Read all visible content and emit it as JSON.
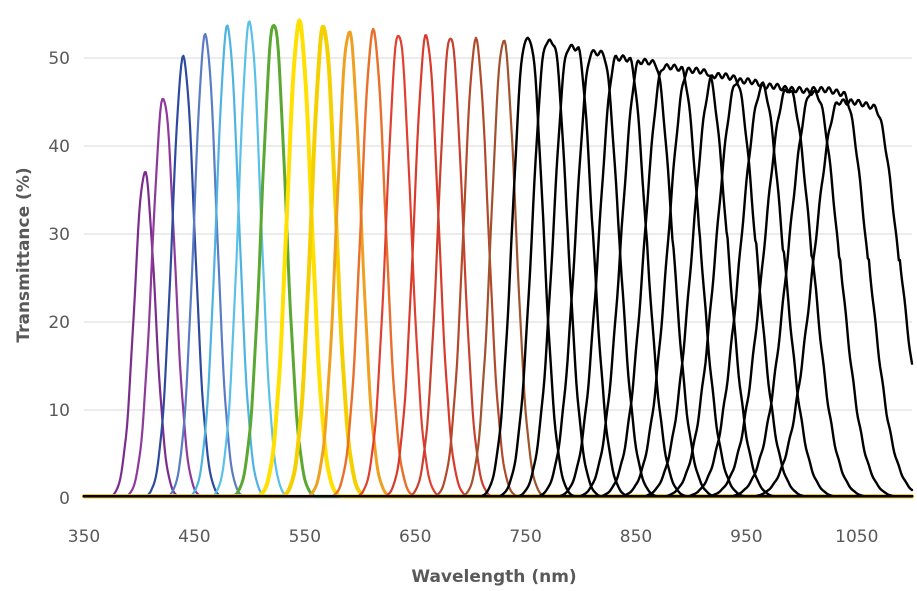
{
  "chart_data": {
    "type": "line",
    "title": "",
    "xlabel": "Wavelength (nm)",
    "ylabel": "Transmittance (%)",
    "xlim": [
      350,
      1100
    ],
    "ylim": [
      0,
      55
    ],
    "xticks": [
      350,
      450,
      550,
      650,
      750,
      850,
      950,
      1050
    ],
    "yticks": [
      0,
      10,
      20,
      30,
      40,
      50
    ],
    "grid": "horizontal",
    "legend": "none",
    "series": [
      {
        "center": 405,
        "peak": 37.0,
        "fwhm": 22,
        "color": "#7b2d8e",
        "width": 2.2,
        "flat": 0
      },
      {
        "center": 422,
        "peak": 45.5,
        "fwhm": 24,
        "color": "#8e3a9a",
        "width": 2.2,
        "flat": 0
      },
      {
        "center": 440,
        "peak": 50.0,
        "fwhm": 24,
        "color": "#2e4a9e",
        "width": 2.2,
        "flat": 0
      },
      {
        "center": 460,
        "peak": 52.5,
        "fwhm": 24,
        "color": "#5a7cc4",
        "width": 2.2,
        "flat": 0
      },
      {
        "center": 480,
        "peak": 53.5,
        "fwhm": 24,
        "color": "#4fb3e0",
        "width": 2.2,
        "flat": 0
      },
      {
        "center": 500,
        "peak": 54.0,
        "fwhm": 24,
        "color": "#5bc0e8",
        "width": 2.2,
        "flat": 0
      },
      {
        "center": 522,
        "peak": 54.0,
        "fwhm": 26,
        "color": "#5aa832",
        "width": 3.0,
        "flat": 0
      },
      {
        "center": 545,
        "peak": 54.0,
        "fwhm": 26,
        "color": "#ffe000",
        "width": 4.0,
        "flat": 0
      },
      {
        "center": 567,
        "peak": 53.5,
        "fwhm": 26,
        "color": "#f5d000",
        "width": 4.0,
        "flat": 0
      },
      {
        "center": 590,
        "peak": 53.0,
        "fwhm": 26,
        "color": "#f0a020",
        "width": 3.0,
        "flat": 0
      },
      {
        "center": 612,
        "peak": 53.0,
        "fwhm": 26,
        "color": "#e8702a",
        "width": 2.4,
        "flat": 0
      },
      {
        "center": 635,
        "peak": 52.8,
        "fwhm": 26,
        "color": "#e04030",
        "width": 2.2,
        "flat": 0
      },
      {
        "center": 660,
        "peak": 52.5,
        "fwhm": 26,
        "color": "#d93a2c",
        "width": 2.2,
        "flat": 0
      },
      {
        "center": 682,
        "peak": 52.5,
        "fwhm": 26,
        "color": "#c8402e",
        "width": 2.2,
        "flat": 0
      },
      {
        "center": 705,
        "peak": 52.0,
        "fwhm": 26,
        "color": "#b04a2a",
        "width": 2.2,
        "flat": 0
      },
      {
        "center": 730,
        "peak": 52.0,
        "fwhm": 26,
        "color": "#a0522d",
        "width": 2.2,
        "flat": 0
      },
      {
        "center": 752,
        "peak": 52.0,
        "fwhm": 28,
        "color": "#000000",
        "width": 2.4,
        "flat": 2
      },
      {
        "center": 772,
        "peak": 51.8,
        "fwhm": 30,
        "color": "#000000",
        "width": 2.4,
        "flat": 3
      },
      {
        "center": 793,
        "peak": 51.2,
        "fwhm": 32,
        "color": "#000000",
        "width": 2.4,
        "flat": 4
      },
      {
        "center": 815,
        "peak": 50.6,
        "fwhm": 34,
        "color": "#000000",
        "width": 2.4,
        "flat": 5
      },
      {
        "center": 838,
        "peak": 50.0,
        "fwhm": 36,
        "color": "#000000",
        "width": 2.4,
        "flat": 6
      },
      {
        "center": 860,
        "peak": 49.6,
        "fwhm": 38,
        "color": "#000000",
        "width": 2.4,
        "flat": 7
      },
      {
        "center": 883,
        "peak": 49.0,
        "fwhm": 40,
        "color": "#000000",
        "width": 2.4,
        "flat": 8
      },
      {
        "center": 906,
        "peak": 48.6,
        "fwhm": 42,
        "color": "#000000",
        "width": 2.4,
        "flat": 9
      },
      {
        "center": 930,
        "peak": 48.0,
        "fwhm": 44,
        "color": "#000000",
        "width": 2.4,
        "flat": 10
      },
      {
        "center": 953,
        "peak": 47.4,
        "fwhm": 46,
        "color": "#000000",
        "width": 2.4,
        "flat": 11
      },
      {
        "center": 977,
        "peak": 46.8,
        "fwhm": 48,
        "color": "#000000",
        "width": 2.4,
        "flat": 12
      },
      {
        "center": 1000,
        "peak": 46.4,
        "fwhm": 50,
        "color": "#000000",
        "width": 2.4,
        "flat": 13
      },
      {
        "center": 1024,
        "peak": 46.4,
        "fwhm": 52,
        "color": "#000000",
        "width": 2.4,
        "flat": 14
      },
      {
        "center": 1050,
        "peak": 45.0,
        "fwhm": 54,
        "color": "#000000",
        "width": 2.4,
        "flat": 16
      }
    ]
  }
}
